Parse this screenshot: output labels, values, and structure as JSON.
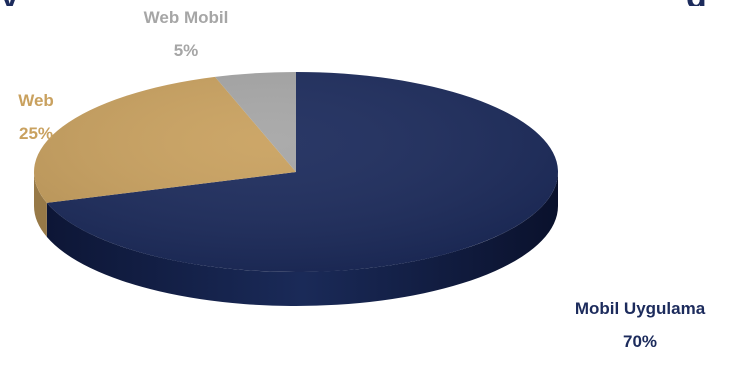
{
  "chart_data": {
    "type": "pie",
    "title_fragments": [
      "y",
      "g"
    ],
    "slices": [
      {
        "name": "Mobil Uygulama",
        "value": 70,
        "value_label": "70%",
        "color": "#1c2b5c",
        "label_color": "#1c2b5c"
      },
      {
        "name": "Web",
        "value": 25,
        "value_label": "25%",
        "color": "#c9a15f",
        "label_color": "#c9a15f"
      },
      {
        "name": "Web Mobil",
        "value": 5,
        "value_label": "5%",
        "color": "#a6a6a6",
        "label_color": "#a6a6a6"
      }
    ],
    "style": "3d",
    "legend": "none"
  }
}
